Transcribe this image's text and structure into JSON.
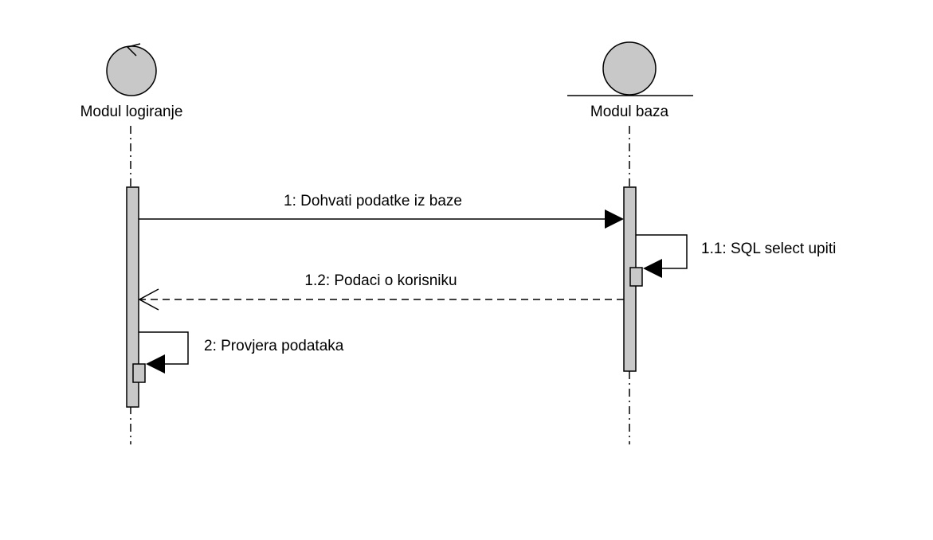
{
  "colors": {
    "stroke": "#000000",
    "fill": "#c8c8c8",
    "background": "#ffffff"
  },
  "lifelines": [
    {
      "name": "Modul logiranje",
      "icon": "control-icon"
    },
    {
      "name": "Modul baza",
      "icon": "entity-icon"
    }
  ],
  "messages": [
    {
      "label": "1: Dohvati podatke iz baze",
      "type": "synchronous",
      "from": "Modul logiranje",
      "to": "Modul baza"
    },
    {
      "label": "1.1: SQL select upiti",
      "type": "self",
      "from": "Modul baza",
      "to": "Modul baza"
    },
    {
      "label": "1.2: Podaci o korisniku",
      "type": "return",
      "from": "Modul baza",
      "to": "Modul logiranje"
    },
    {
      "label": "2: Provjera podataka",
      "type": "self",
      "from": "Modul logiranje",
      "to": "Modul logiranje"
    }
  ]
}
